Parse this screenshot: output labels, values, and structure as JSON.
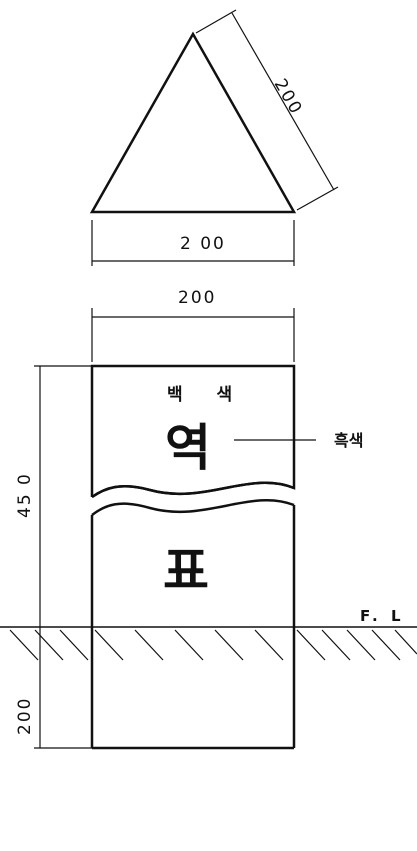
{
  "dimensions": {
    "triangle_side": "200",
    "triangle_base": "2 00",
    "post_width": "200",
    "post_height_above_ground": "45 0",
    "post_depth_below_ground": "200"
  },
  "labels": {
    "background_color": "백 색",
    "char_top": "역",
    "char_bottom": "표",
    "text_color_callout": "흑색",
    "floor_level": "F. L"
  },
  "colors": {
    "line": "#111111",
    "background": "#ffffff"
  }
}
